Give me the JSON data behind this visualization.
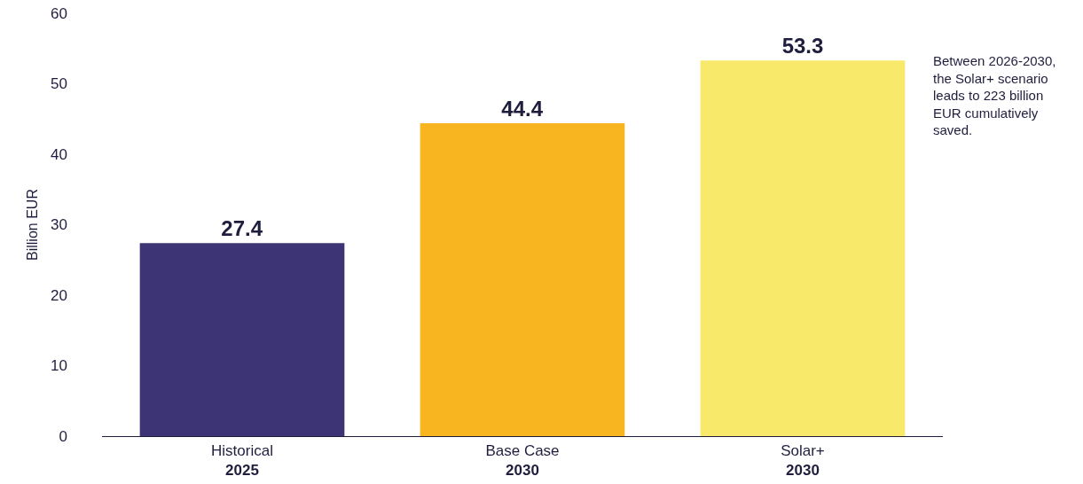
{
  "chart_data": {
    "type": "bar",
    "ylabel": "Billion EUR",
    "categories": [
      "Historical\n2025",
      "Base Case\n2030",
      "Solar+\n2030"
    ],
    "values": [
      27.4,
      44.4,
      53.3
    ],
    "colors": [
      "#3d3475",
      "#f9b51f",
      "#f8e96a"
    ],
    "ylim": [
      0,
      60
    ],
    "yticks": [
      0,
      10,
      20,
      30,
      40,
      50,
      60
    ],
    "grid": false,
    "legend": false,
    "data_labels": true,
    "annotations": [
      "Between 2026-2030, the Solar+ scenario leads to 223 billion EUR cumulatively saved."
    ]
  }
}
